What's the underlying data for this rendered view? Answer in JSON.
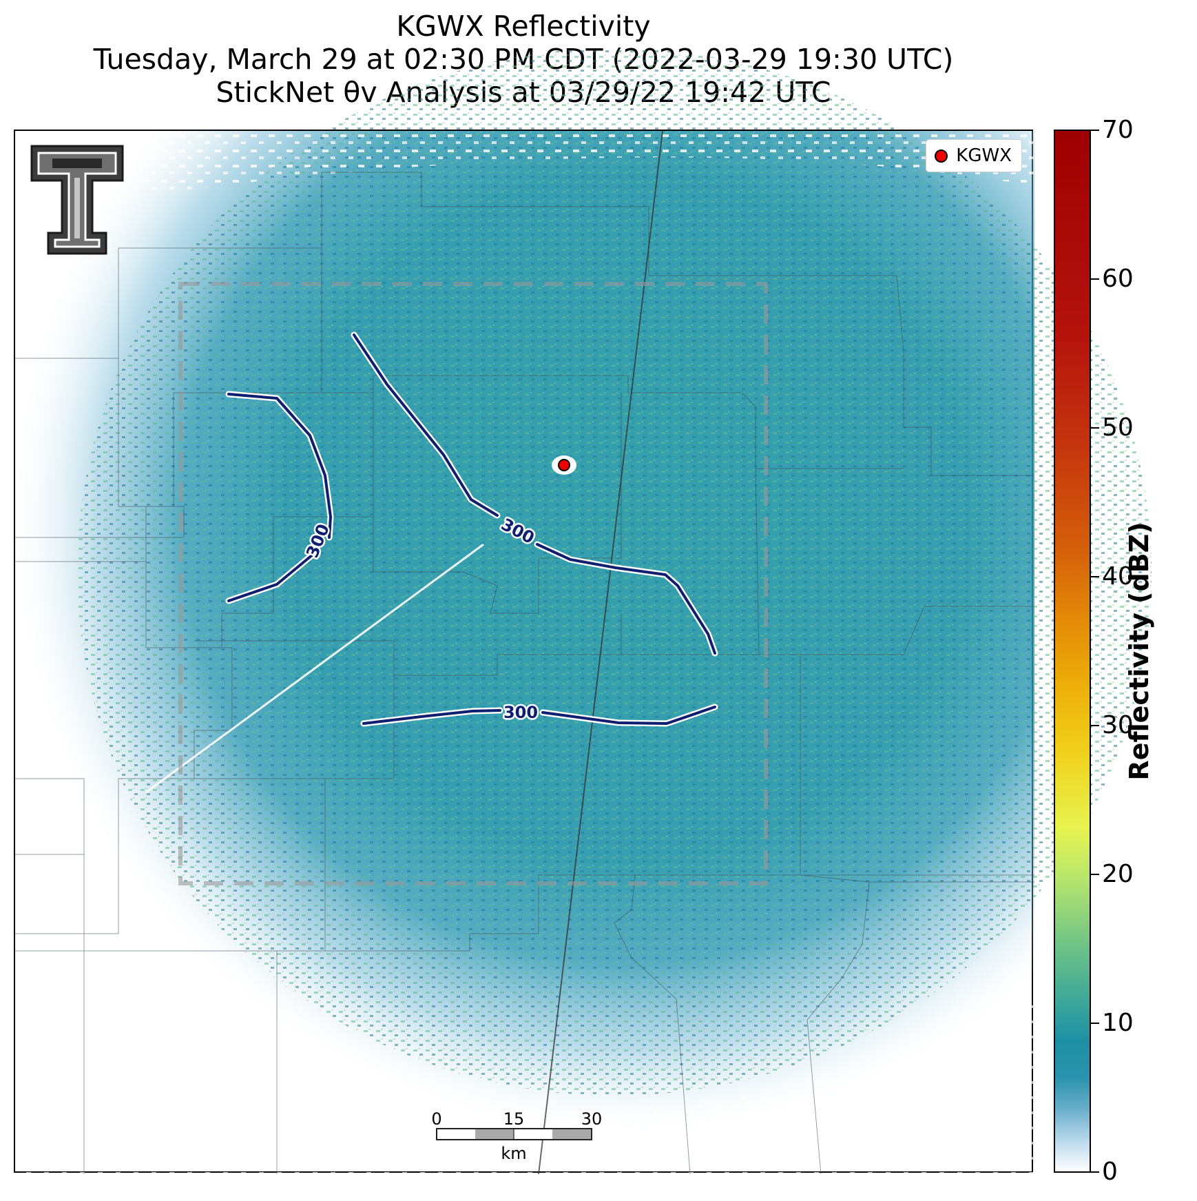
{
  "title": {
    "line1": "KGWX Reflectivity",
    "line2": "Tuesday, March 29 at 02:30 PM CDT (2022-03-29 19:30 UTC)",
    "line3": "StickNet θv Analysis at 03/29/22 19:42 UTC"
  },
  "legend": {
    "label": "KGWX"
  },
  "contours": {
    "label": "300",
    "labels": [
      "300",
      "300",
      "300"
    ]
  },
  "scalebar": {
    "ticks": [
      "0",
      "15",
      "30"
    ],
    "unit": "km"
  },
  "colorbar": {
    "title": "Reflectivity (dBZ)",
    "ticks": [
      "0",
      "10",
      "20",
      "30",
      "40",
      "50",
      "60",
      "70"
    ],
    "colors": {
      "low": "#ffffff",
      "mid": "#1d8fa4",
      "green": "#72c486",
      "yellow": "#e7f34f",
      "orange": "#e48a07",
      "high": "#9e0000"
    }
  },
  "radar": {
    "name": "KGWX",
    "marker_color": "#ee0000"
  },
  "colors": {
    "contour": "#0d1f6e",
    "echo": "#1d8fa4",
    "analysis_box": "#9a9a9a"
  }
}
